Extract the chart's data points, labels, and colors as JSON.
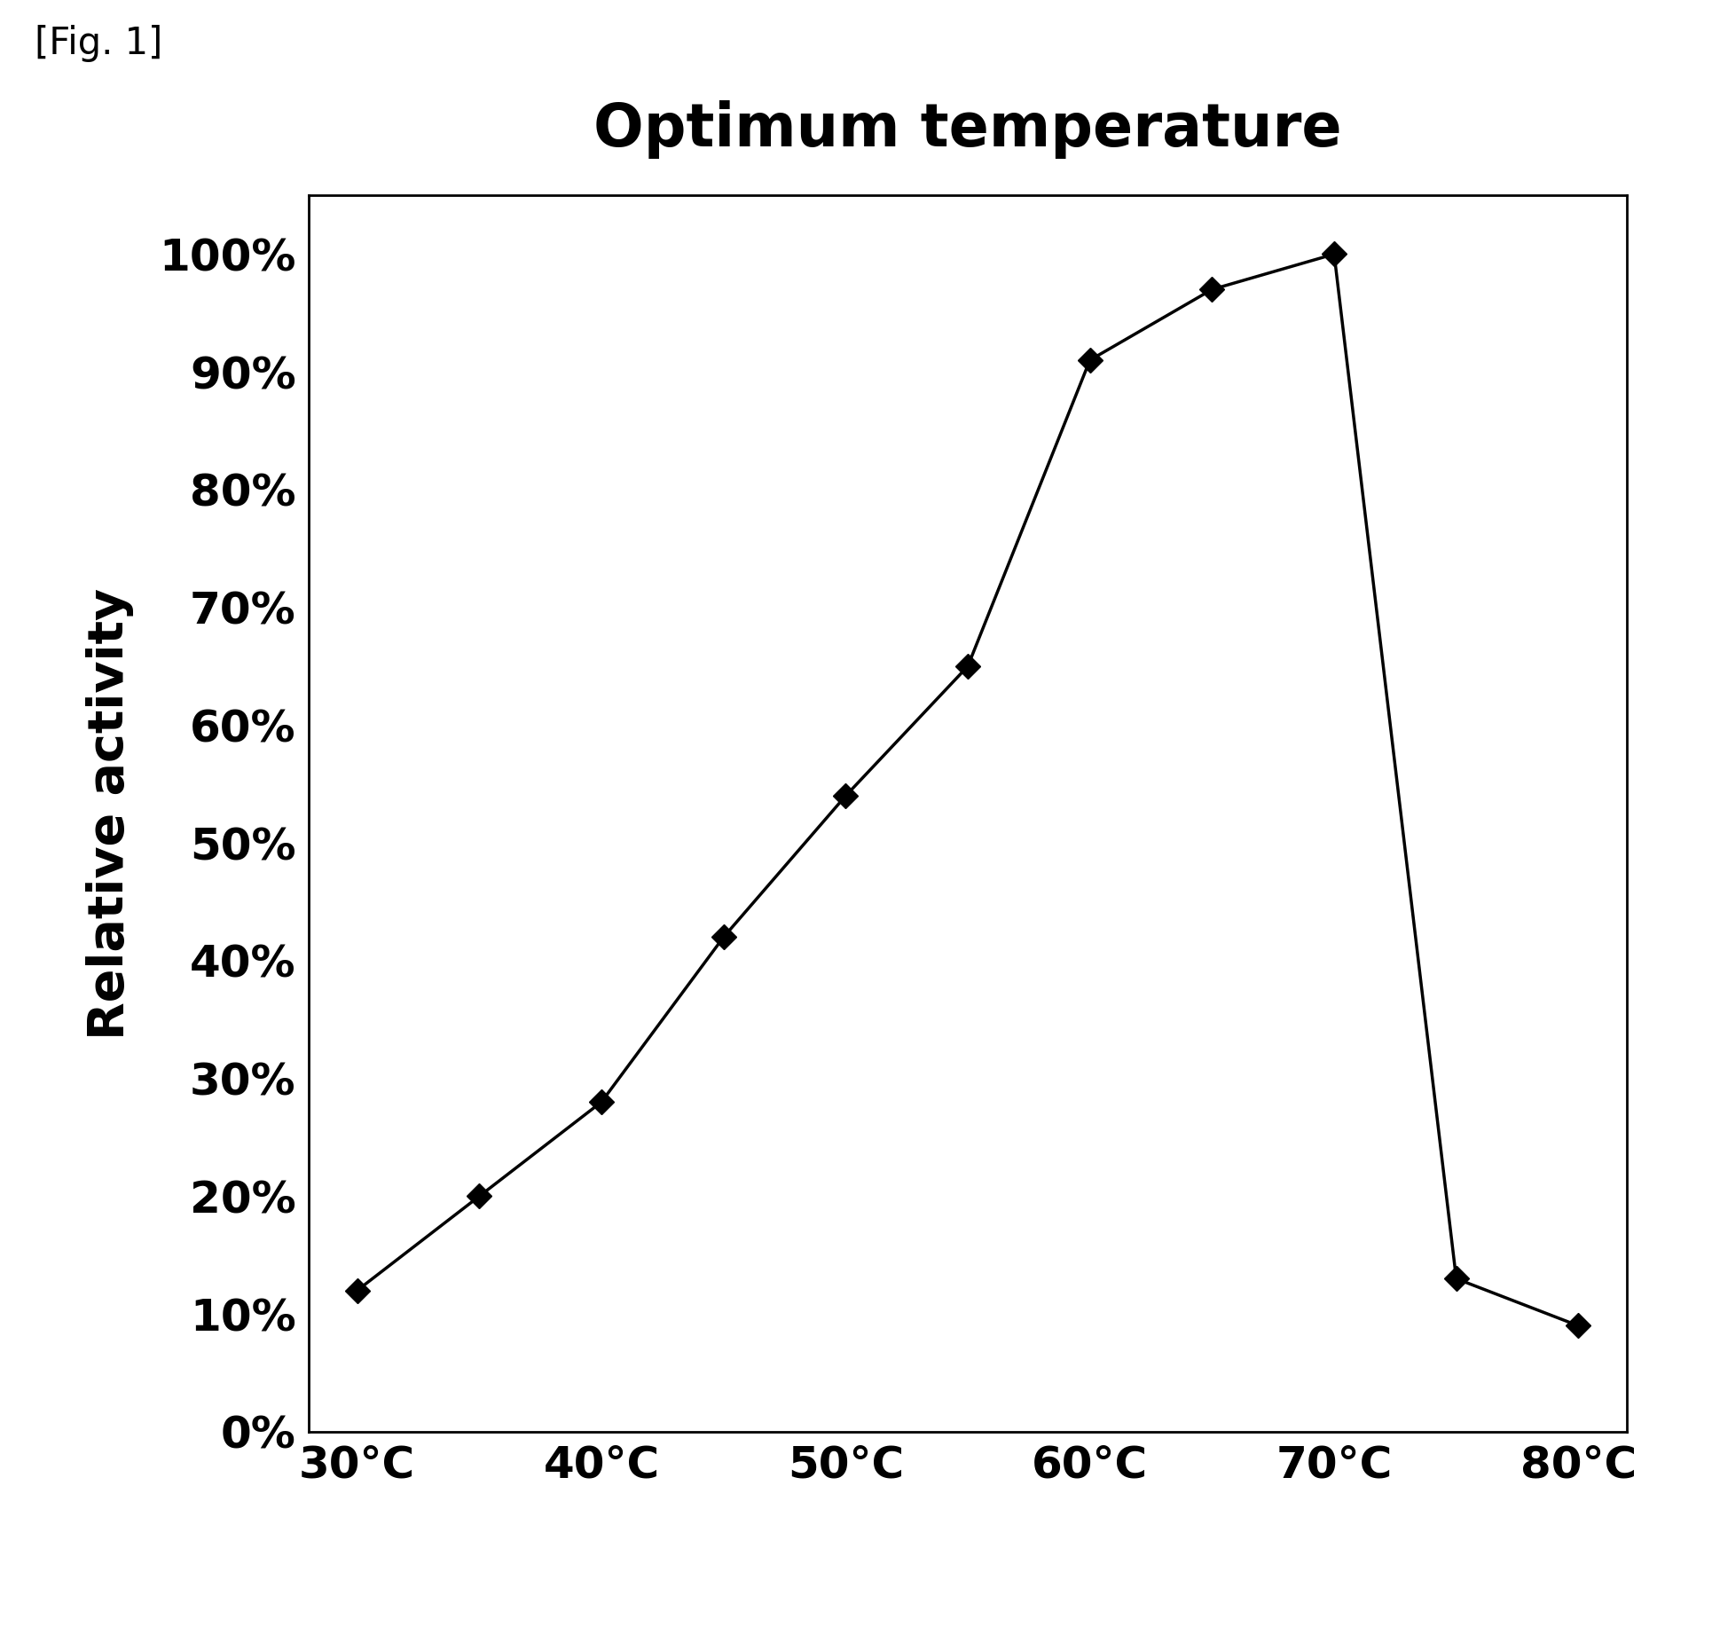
{
  "title": "Optimum temperature",
  "fig_label": "[Fig. 1]",
  "xlabel_temperatures": [
    "30°C",
    "40°C",
    "50°C",
    "60°C",
    "70°C",
    "80°C"
  ],
  "xtick_values": [
    30,
    40,
    50,
    60,
    70,
    80
  ],
  "ylabel": "Relative activity",
  "x": [
    30,
    35,
    40,
    45,
    50,
    55,
    60,
    65,
    70,
    75,
    80
  ],
  "y": [
    0.12,
    0.2,
    0.28,
    0.42,
    0.54,
    0.65,
    0.91,
    0.97,
    1.0,
    0.13,
    0.09
  ],
  "xlim": [
    28,
    82
  ],
  "ylim": [
    0.0,
    1.05
  ],
  "ytick_values": [
    0.0,
    0.1,
    0.2,
    0.3,
    0.4,
    0.5,
    0.6,
    0.7,
    0.8,
    0.9,
    1.0
  ],
  "ytick_labels": [
    "0%",
    "10%",
    "20%",
    "30%",
    "40%",
    "50%",
    "60%",
    "70%",
    "80%",
    "90%",
    "100%"
  ],
  "line_color": "#000000",
  "marker_color": "#000000",
  "marker_style": "D",
  "marker_size": 14,
  "line_width": 2.5,
  "title_fontsize": 48,
  "label_fontsize": 40,
  "tick_fontsize": 36,
  "figlabel_fontsize": 30,
  "background_color": "#ffffff"
}
